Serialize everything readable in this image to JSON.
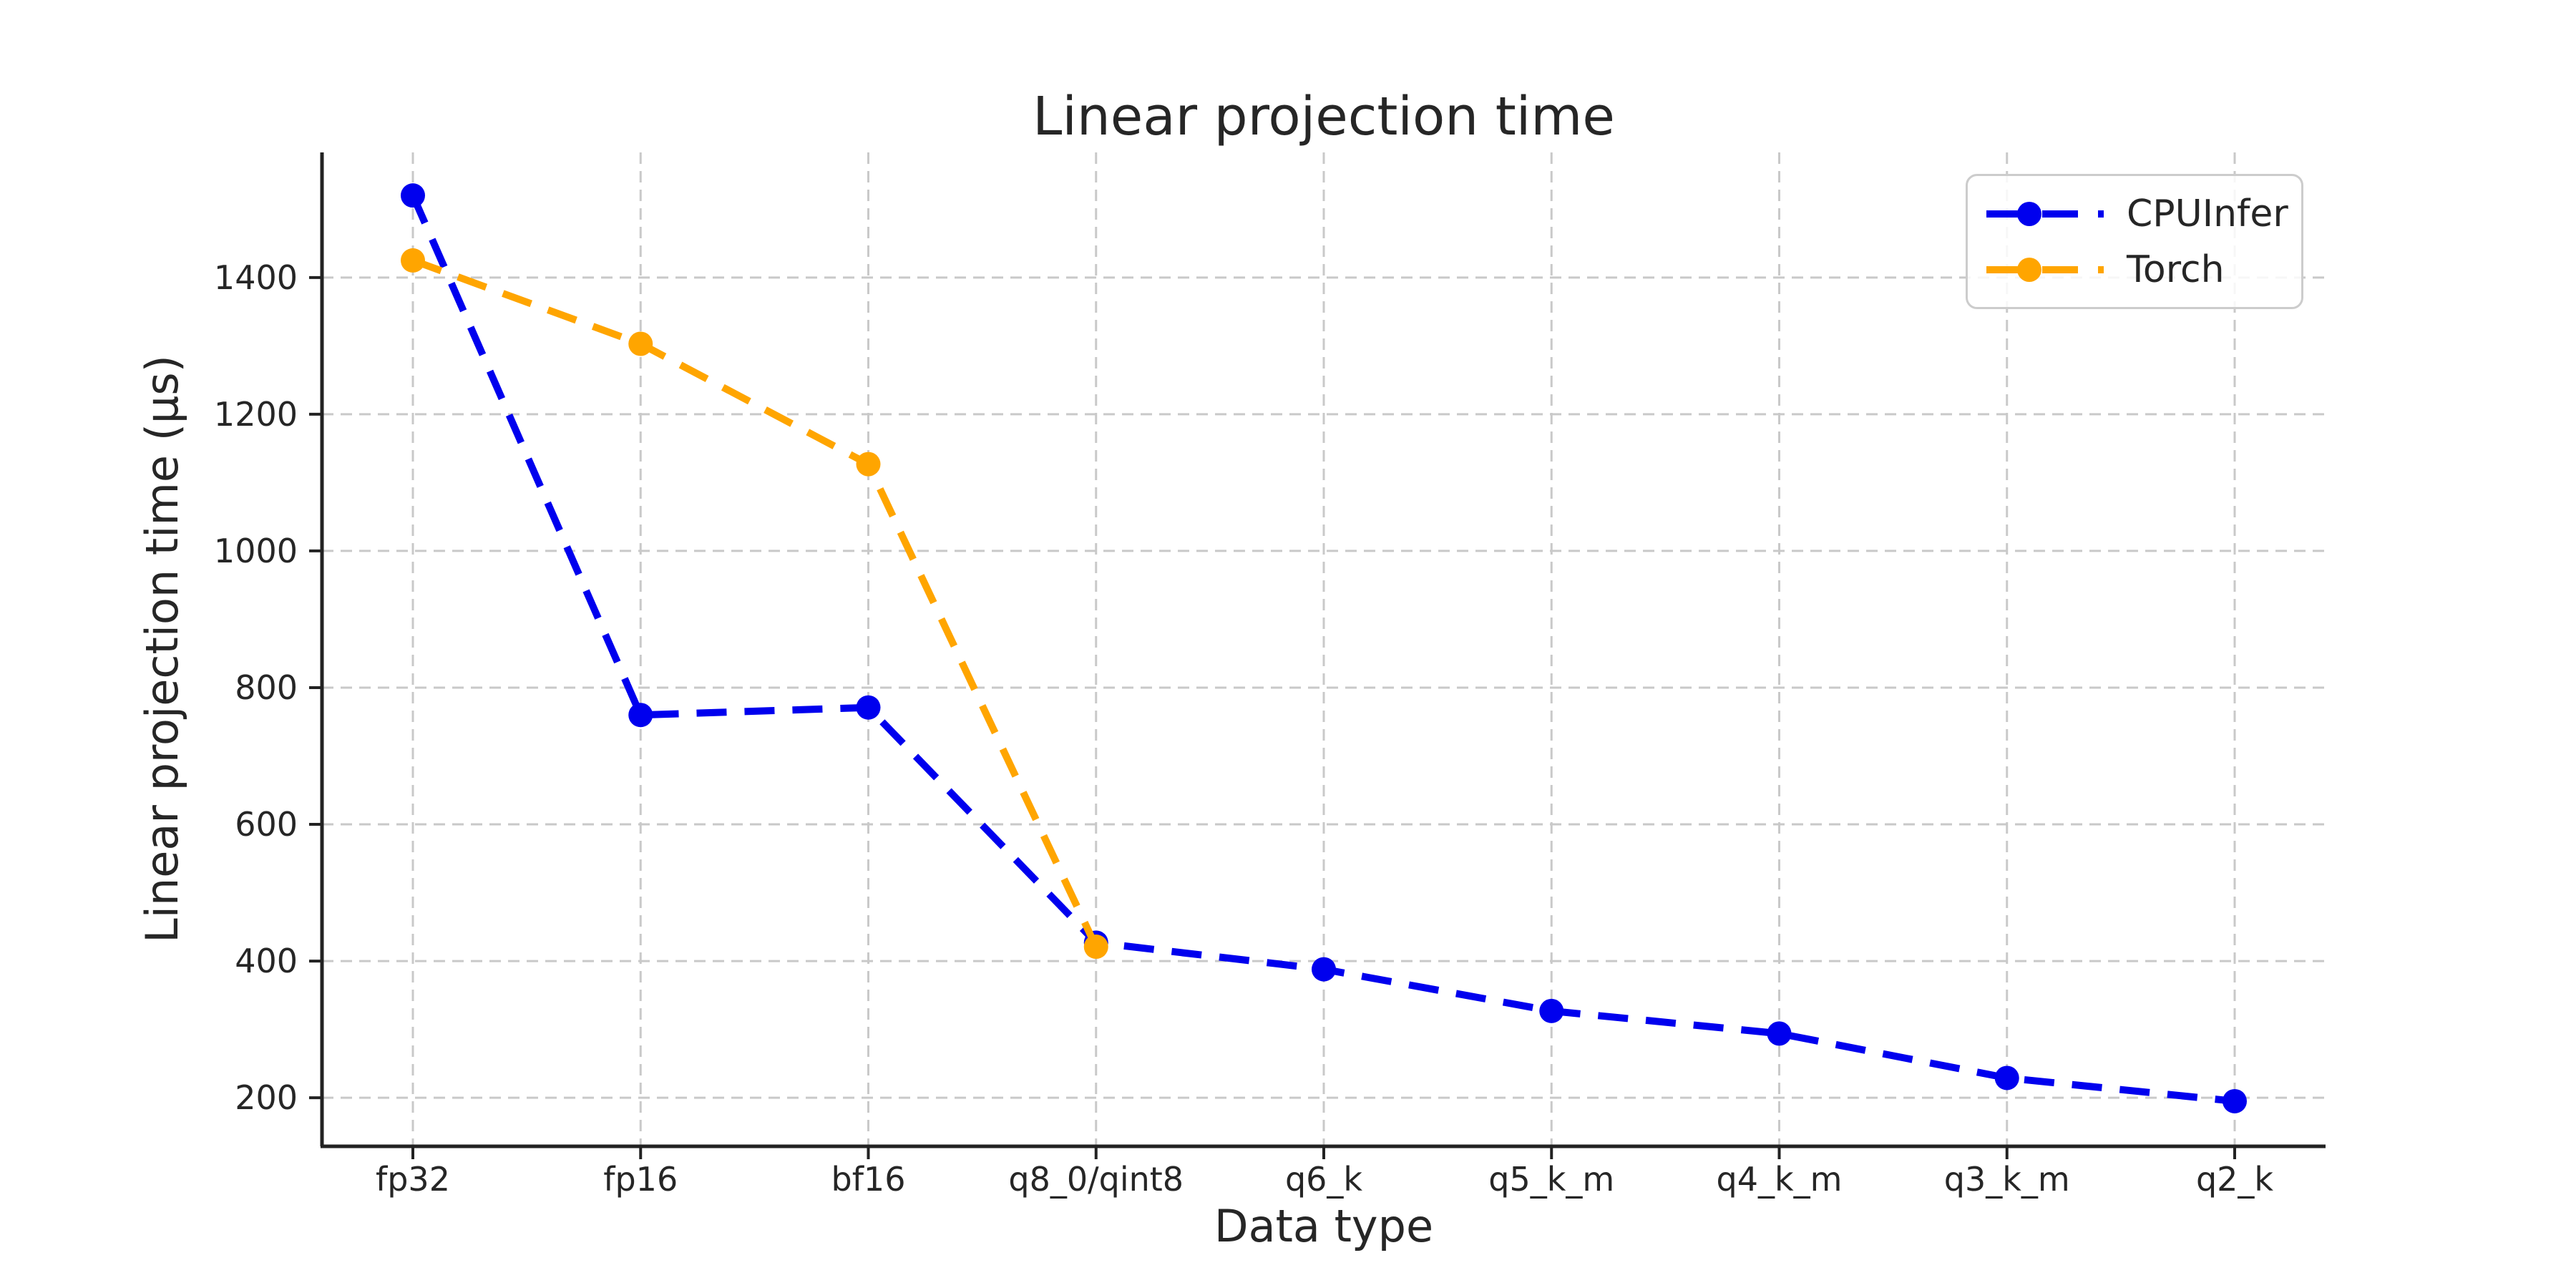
{
  "chart_data": {
    "type": "line",
    "title": "Linear projection time",
    "xlabel": "Data type",
    "ylabel": "Linear projection time (μs)",
    "categories": [
      "fp32",
      "fp16",
      "bf16",
      "q8_0/qint8",
      "q6_k",
      "q5_k_m",
      "q4_k_m",
      "q3_k_m",
      "q2_k"
    ],
    "series": [
      {
        "name": "CPUInfer",
        "color": "#0000ee",
        "values": [
          1520,
          760,
          771,
          427,
          388,
          327,
          294,
          229,
          195
        ]
      },
      {
        "name": "Torch",
        "color": "#ffa500",
        "values": [
          1425,
          1303,
          1127,
          421
        ]
      }
    ],
    "yticks": [
      200,
      400,
      600,
      800,
      1000,
      1200,
      1400
    ],
    "ylim": [
      129,
      1583
    ],
    "grid": {
      "on": true,
      "style": "dashed",
      "color": "#c9c9c9"
    },
    "line_style": "dashed",
    "marker": "circle",
    "legend_position": "upper right"
  },
  "colors": {
    "text": "#262626",
    "spine": "#222222",
    "background": "#ffffff"
  }
}
